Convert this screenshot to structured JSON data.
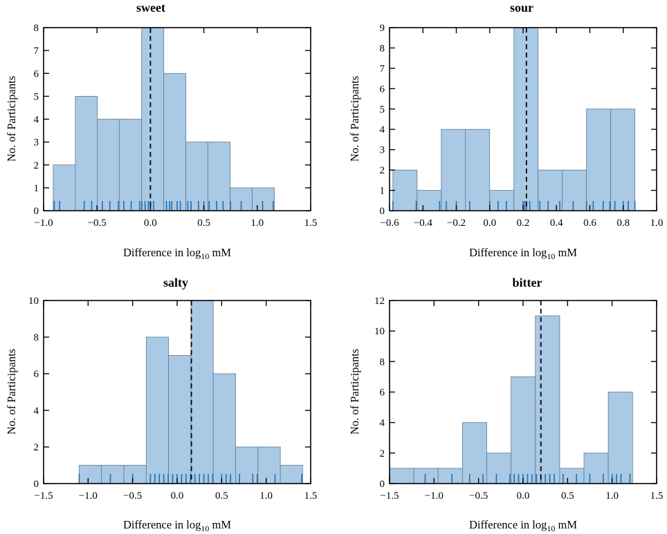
{
  "chart_data": [
    {
      "type": "bar",
      "subtype": "histogram",
      "title": "sweet",
      "xlabel": "Difference in log",
      "xlabel_sub": "10",
      "xlabel_suffix": " mM",
      "ylabel": "No. of Participants",
      "xlim": [
        -1.0,
        1.5
      ],
      "ylim": [
        0,
        8
      ],
      "xticks": [
        -1.0,
        -0.5,
        0.0,
        0.5,
        1.0,
        1.5
      ],
      "xtick_labels": [
        "−1.0",
        "−0.5",
        "0.0",
        "0.5",
        "1.0",
        "1.5"
      ],
      "yticks": [
        0,
        1,
        2,
        3,
        4,
        5,
        6,
        7,
        8
      ],
      "ytick_labels": [
        "0",
        "1",
        "2",
        "3",
        "4",
        "5",
        "6",
        "7",
        "8"
      ],
      "bin_edges": [
        -0.91,
        -0.703,
        -0.496,
        -0.289,
        -0.082,
        0.125,
        0.332,
        0.539,
        0.746,
        0.953,
        1.16
      ],
      "counts": [
        2,
        5,
        4,
        4,
        8,
        6,
        3,
        3,
        1,
        1
      ],
      "median": 0.0,
      "rug": [
        -0.9,
        -0.85,
        -0.62,
        -0.55,
        -0.45,
        -0.38,
        -0.3,
        -0.25,
        -0.18,
        -0.1,
        -0.08,
        -0.05,
        -0.02,
        0.0,
        0.03,
        0.15,
        0.18,
        0.2,
        0.25,
        0.28,
        0.35,
        0.38,
        0.45,
        0.5,
        0.55,
        0.62,
        0.68,
        0.75,
        0.85,
        1.05,
        1.15
      ]
    },
    {
      "type": "bar",
      "subtype": "histogram",
      "title": "sour",
      "xlabel": "Difference in log",
      "xlabel_sub": "10",
      "xlabel_suffix": " mM",
      "ylabel": "No. of Participants",
      "xlim": [
        -0.6,
        1.0
      ],
      "ylim": [
        0,
        9
      ],
      "xticks": [
        -0.6,
        -0.4,
        -0.2,
        0.0,
        0.2,
        0.4,
        0.6,
        0.8,
        1.0
      ],
      "xtick_labels": [
        "−0.6",
        "−0.4",
        "−0.2",
        "0.0",
        "0.2",
        "0.4",
        "0.6",
        "0.8",
        "1.0"
      ],
      "yticks": [
        0,
        1,
        2,
        3,
        4,
        5,
        6,
        7,
        8,
        9
      ],
      "ytick_labels": [
        "0",
        "1",
        "2",
        "3",
        "4",
        "5",
        "6",
        "7",
        "8",
        "9"
      ],
      "bin_edges": [
        -0.58,
        -0.435,
        -0.29,
        -0.145,
        0.0,
        0.145,
        0.29,
        0.435,
        0.58,
        0.725,
        0.87
      ],
      "counts": [
        2,
        1,
        4,
        4,
        1,
        9,
        2,
        2,
        5,
        5
      ],
      "median": 0.22,
      "rug": [
        -0.58,
        -0.44,
        -0.3,
        -0.26,
        -0.2,
        -0.12,
        0.0,
        0.05,
        0.1,
        0.2,
        0.21,
        0.22,
        0.24,
        0.3,
        0.35,
        0.42,
        0.5,
        0.58,
        0.62,
        0.68,
        0.72,
        0.75,
        0.8,
        0.83,
        0.87
      ]
    },
    {
      "type": "bar",
      "subtype": "histogram",
      "title": "salty",
      "xlabel": "Difference in log",
      "xlabel_sub": "10",
      "xlabel_suffix": " mM",
      "ylabel": "No. of Participants",
      "xlim": [
        -1.5,
        1.5
      ],
      "ylim": [
        0,
        10
      ],
      "xticks": [
        -1.5,
        -1.0,
        -0.5,
        0.0,
        0.5,
        1.0,
        1.5
      ],
      "xtick_labels": [
        "−1.5",
        "−1.0",
        "−0.5",
        "0.0",
        "0.5",
        "1.0",
        "1.5"
      ],
      "yticks": [
        0,
        2,
        4,
        6,
        8,
        10
      ],
      "ytick_labels": [
        "0",
        "2",
        "4",
        "6",
        "8",
        "10"
      ],
      "bin_edges": [
        -1.1,
        -0.849,
        -0.598,
        -0.347,
        -0.096,
        0.155,
        0.406,
        0.657,
        0.908,
        1.159,
        1.41
      ],
      "counts": [
        1,
        1,
        1,
        8,
        7,
        10,
        6,
        2,
        2,
        1
      ],
      "median": 0.16,
      "rug": [
        -1.1,
        -0.75,
        -0.5,
        -0.3,
        -0.25,
        -0.2,
        -0.15,
        -0.1,
        -0.05,
        0.0,
        0.05,
        0.1,
        0.15,
        0.2,
        0.25,
        0.3,
        0.35,
        0.4,
        0.5,
        0.55,
        0.6,
        0.7,
        0.85,
        0.9,
        1.1,
        1.4
      ]
    },
    {
      "type": "bar",
      "subtype": "histogram",
      "title": "bitter",
      "xlabel": "Difference in log",
      "xlabel_sub": "10",
      "xlabel_suffix": " mM",
      "ylabel": "No. of Participants",
      "xlim": [
        -1.5,
        1.5
      ],
      "ylim": [
        0,
        12
      ],
      "xticks": [
        -1.5,
        -1.0,
        -0.5,
        0.0,
        0.5,
        1.0,
        1.5
      ],
      "xtick_labels": [
        "−1.5",
        "−1.0",
        "−0.5",
        "0.0",
        "0.5",
        "1.0",
        "1.5"
      ],
      "yticks": [
        0,
        2,
        4,
        6,
        8,
        10,
        12
      ],
      "ytick_labels": [
        "0",
        "2",
        "4",
        "6",
        "8",
        "10",
        "12"
      ],
      "bin_edges": [
        -1.5,
        -1.227,
        -0.954,
        -0.681,
        -0.408,
        -0.135,
        0.138,
        0.411,
        0.684,
        0.957,
        1.23
      ],
      "counts": [
        1,
        1,
        1,
        4,
        2,
        7,
        11,
        1,
        2,
        6
      ],
      "median": 0.2,
      "rug": [
        -1.5,
        -1.1,
        -0.8,
        -0.6,
        -0.45,
        -0.3,
        -0.15,
        -0.1,
        -0.05,
        0.0,
        0.05,
        0.1,
        0.15,
        0.2,
        0.25,
        0.3,
        0.35,
        0.45,
        0.6,
        0.75,
        0.9,
        1.0,
        1.05,
        1.1,
        1.2
      ]
    }
  ]
}
